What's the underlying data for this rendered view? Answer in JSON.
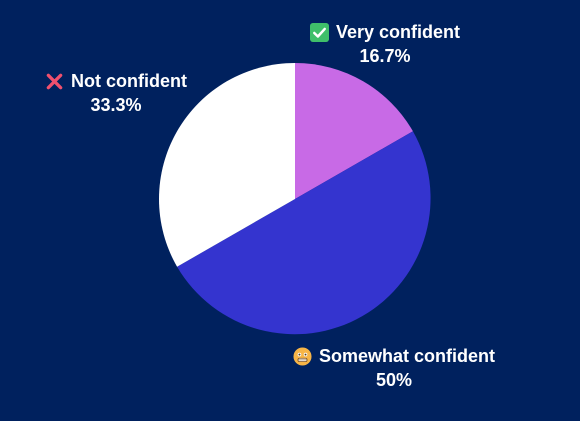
{
  "chart_data": {
    "type": "pie",
    "slices": [
      {
        "label": "Very confident",
        "value": 16.7,
        "value_label": "16.7%",
        "color": "#c86ae6",
        "icon": "check-mark-button-icon"
      },
      {
        "label": "Somewhat confident",
        "value": 50,
        "value_label": "50%",
        "color": "#3434cf",
        "icon": "grimacing-face-icon"
      },
      {
        "label": "Not confident",
        "value": 33.3,
        "value_label": "33.3%",
        "color": "#ffffff",
        "icon": "cross-mark-icon"
      }
    ],
    "start_angle_deg": 0,
    "direction": "clockwise"
  },
  "colors": {
    "background": "#00215e",
    "label_text": "#ffffff"
  }
}
